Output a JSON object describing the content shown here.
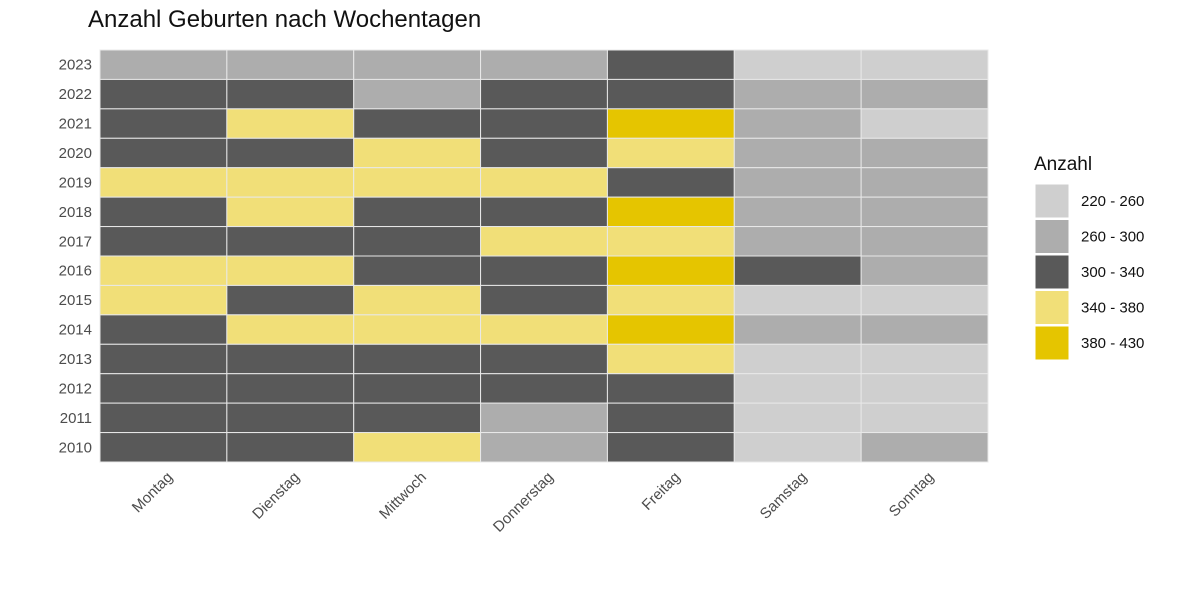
{
  "chart_data": {
    "type": "heatmap",
    "title": "Anzahl Geburten nach Wochentagen",
    "xlabel": "",
    "ylabel": "",
    "x_categories": [
      "Montag",
      "Dienstag",
      "Mittwoch",
      "Donnerstag",
      "Freitag",
      "Samstag",
      "Sonntag"
    ],
    "y_categories": [
      "2023",
      "2022",
      "2021",
      "2020",
      "2019",
      "2018",
      "2017",
      "2016",
      "2015",
      "2014",
      "2013",
      "2012",
      "2011",
      "2010"
    ],
    "legend": {
      "title": "Anzahl",
      "position": "right",
      "bins": [
        {
          "label": "220 - 260",
          "color": "#cfcfcf"
        },
        {
          "label": "260 - 300",
          "color": "#adadad"
        },
        {
          "label": "300 - 340",
          "color": "#595959"
        },
        {
          "label": "340 - 380",
          "color": "#f1df78"
        },
        {
          "label": "380 - 430",
          "color": "#e5c500"
        }
      ]
    },
    "cells_bin_index": [
      [
        1,
        1,
        1,
        1,
        2,
        0,
        0
      ],
      [
        2,
        2,
        1,
        2,
        2,
        1,
        1
      ],
      [
        2,
        3,
        2,
        2,
        4,
        1,
        0
      ],
      [
        2,
        2,
        3,
        2,
        3,
        1,
        1
      ],
      [
        3,
        3,
        3,
        3,
        2,
        1,
        1
      ],
      [
        2,
        3,
        2,
        2,
        4,
        1,
        1
      ],
      [
        2,
        2,
        2,
        3,
        3,
        1,
        1
      ],
      [
        3,
        3,
        2,
        2,
        4,
        2,
        1
      ],
      [
        3,
        2,
        3,
        2,
        3,
        0,
        0
      ],
      [
        2,
        3,
        3,
        3,
        4,
        1,
        1
      ],
      [
        2,
        2,
        2,
        2,
        3,
        0,
        0
      ],
      [
        2,
        2,
        2,
        2,
        2,
        0,
        0
      ],
      [
        2,
        2,
        2,
        1,
        2,
        0,
        0
      ],
      [
        2,
        2,
        3,
        1,
        2,
        0,
        1
      ]
    ]
  }
}
